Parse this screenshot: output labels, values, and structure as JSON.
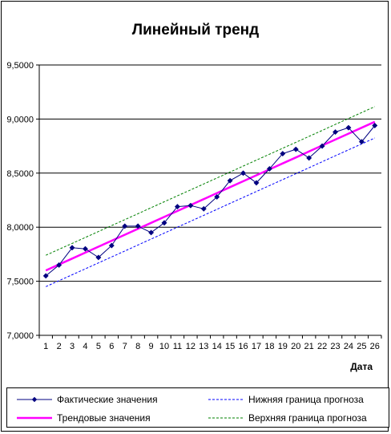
{
  "chart_data": {
    "type": "line",
    "title": "Линейный тренд",
    "xlabel": "Дата",
    "ylabel": "",
    "x": [
      1,
      2,
      3,
      4,
      5,
      6,
      7,
      8,
      9,
      10,
      11,
      12,
      13,
      14,
      15,
      16,
      17,
      18,
      19,
      20,
      21,
      22,
      23,
      24,
      25,
      26
    ],
    "ylim": [
      7.0,
      9.5
    ],
    "yticks": [
      "7,0000",
      "7,5000",
      "8,0000",
      "8,5000",
      "9,0000",
      "9,5000"
    ],
    "ytick_values": [
      7.0,
      7.5,
      8.0,
      8.5,
      9.0,
      9.5
    ],
    "grid": "horizontal",
    "legend_position": "bottom",
    "series": [
      {
        "name": "Фактические значения",
        "color": "#000080",
        "style": "line-markers",
        "values": [
          7.55,
          7.65,
          7.81,
          7.8,
          7.72,
          7.83,
          8.01,
          8.01,
          7.95,
          8.04,
          8.19,
          8.2,
          8.17,
          8.28,
          8.43,
          8.5,
          8.41,
          8.54,
          8.68,
          8.72,
          8.64,
          8.75,
          8.88,
          8.92,
          8.79,
          8.94
        ]
      },
      {
        "name": "Трендовые значения",
        "color": "#ff00ff",
        "style": "line-thick",
        "values": [
          7.6,
          7.655,
          7.71,
          7.765,
          7.82,
          7.875,
          7.93,
          7.985,
          8.04,
          8.095,
          8.15,
          8.205,
          8.26,
          8.315,
          8.37,
          8.425,
          8.48,
          8.535,
          8.59,
          8.645,
          8.7,
          8.755,
          8.81,
          8.865,
          8.92,
          8.975
        ]
      },
      {
        "name": "Нижняя граница прогноза",
        "color": "#0000ff",
        "style": "dashed",
        "values": [
          7.45,
          7.505,
          7.56,
          7.615,
          7.67,
          7.725,
          7.78,
          7.835,
          7.89,
          7.945,
          8.0,
          8.055,
          8.11,
          8.165,
          8.22,
          8.275,
          8.33,
          8.385,
          8.44,
          8.495,
          8.55,
          8.605,
          8.66,
          8.715,
          8.77,
          8.825
        ]
      },
      {
        "name": "Верхняя граница прогноза",
        "color": "#008000",
        "style": "dashed",
        "values": [
          7.74,
          7.795,
          7.85,
          7.905,
          7.96,
          8.015,
          8.07,
          8.125,
          8.18,
          8.235,
          8.29,
          8.345,
          8.4,
          8.455,
          8.51,
          8.565,
          8.62,
          8.675,
          8.73,
          8.785,
          8.84,
          8.895,
          8.95,
          9.005,
          9.06,
          9.115
        ]
      }
    ]
  }
}
